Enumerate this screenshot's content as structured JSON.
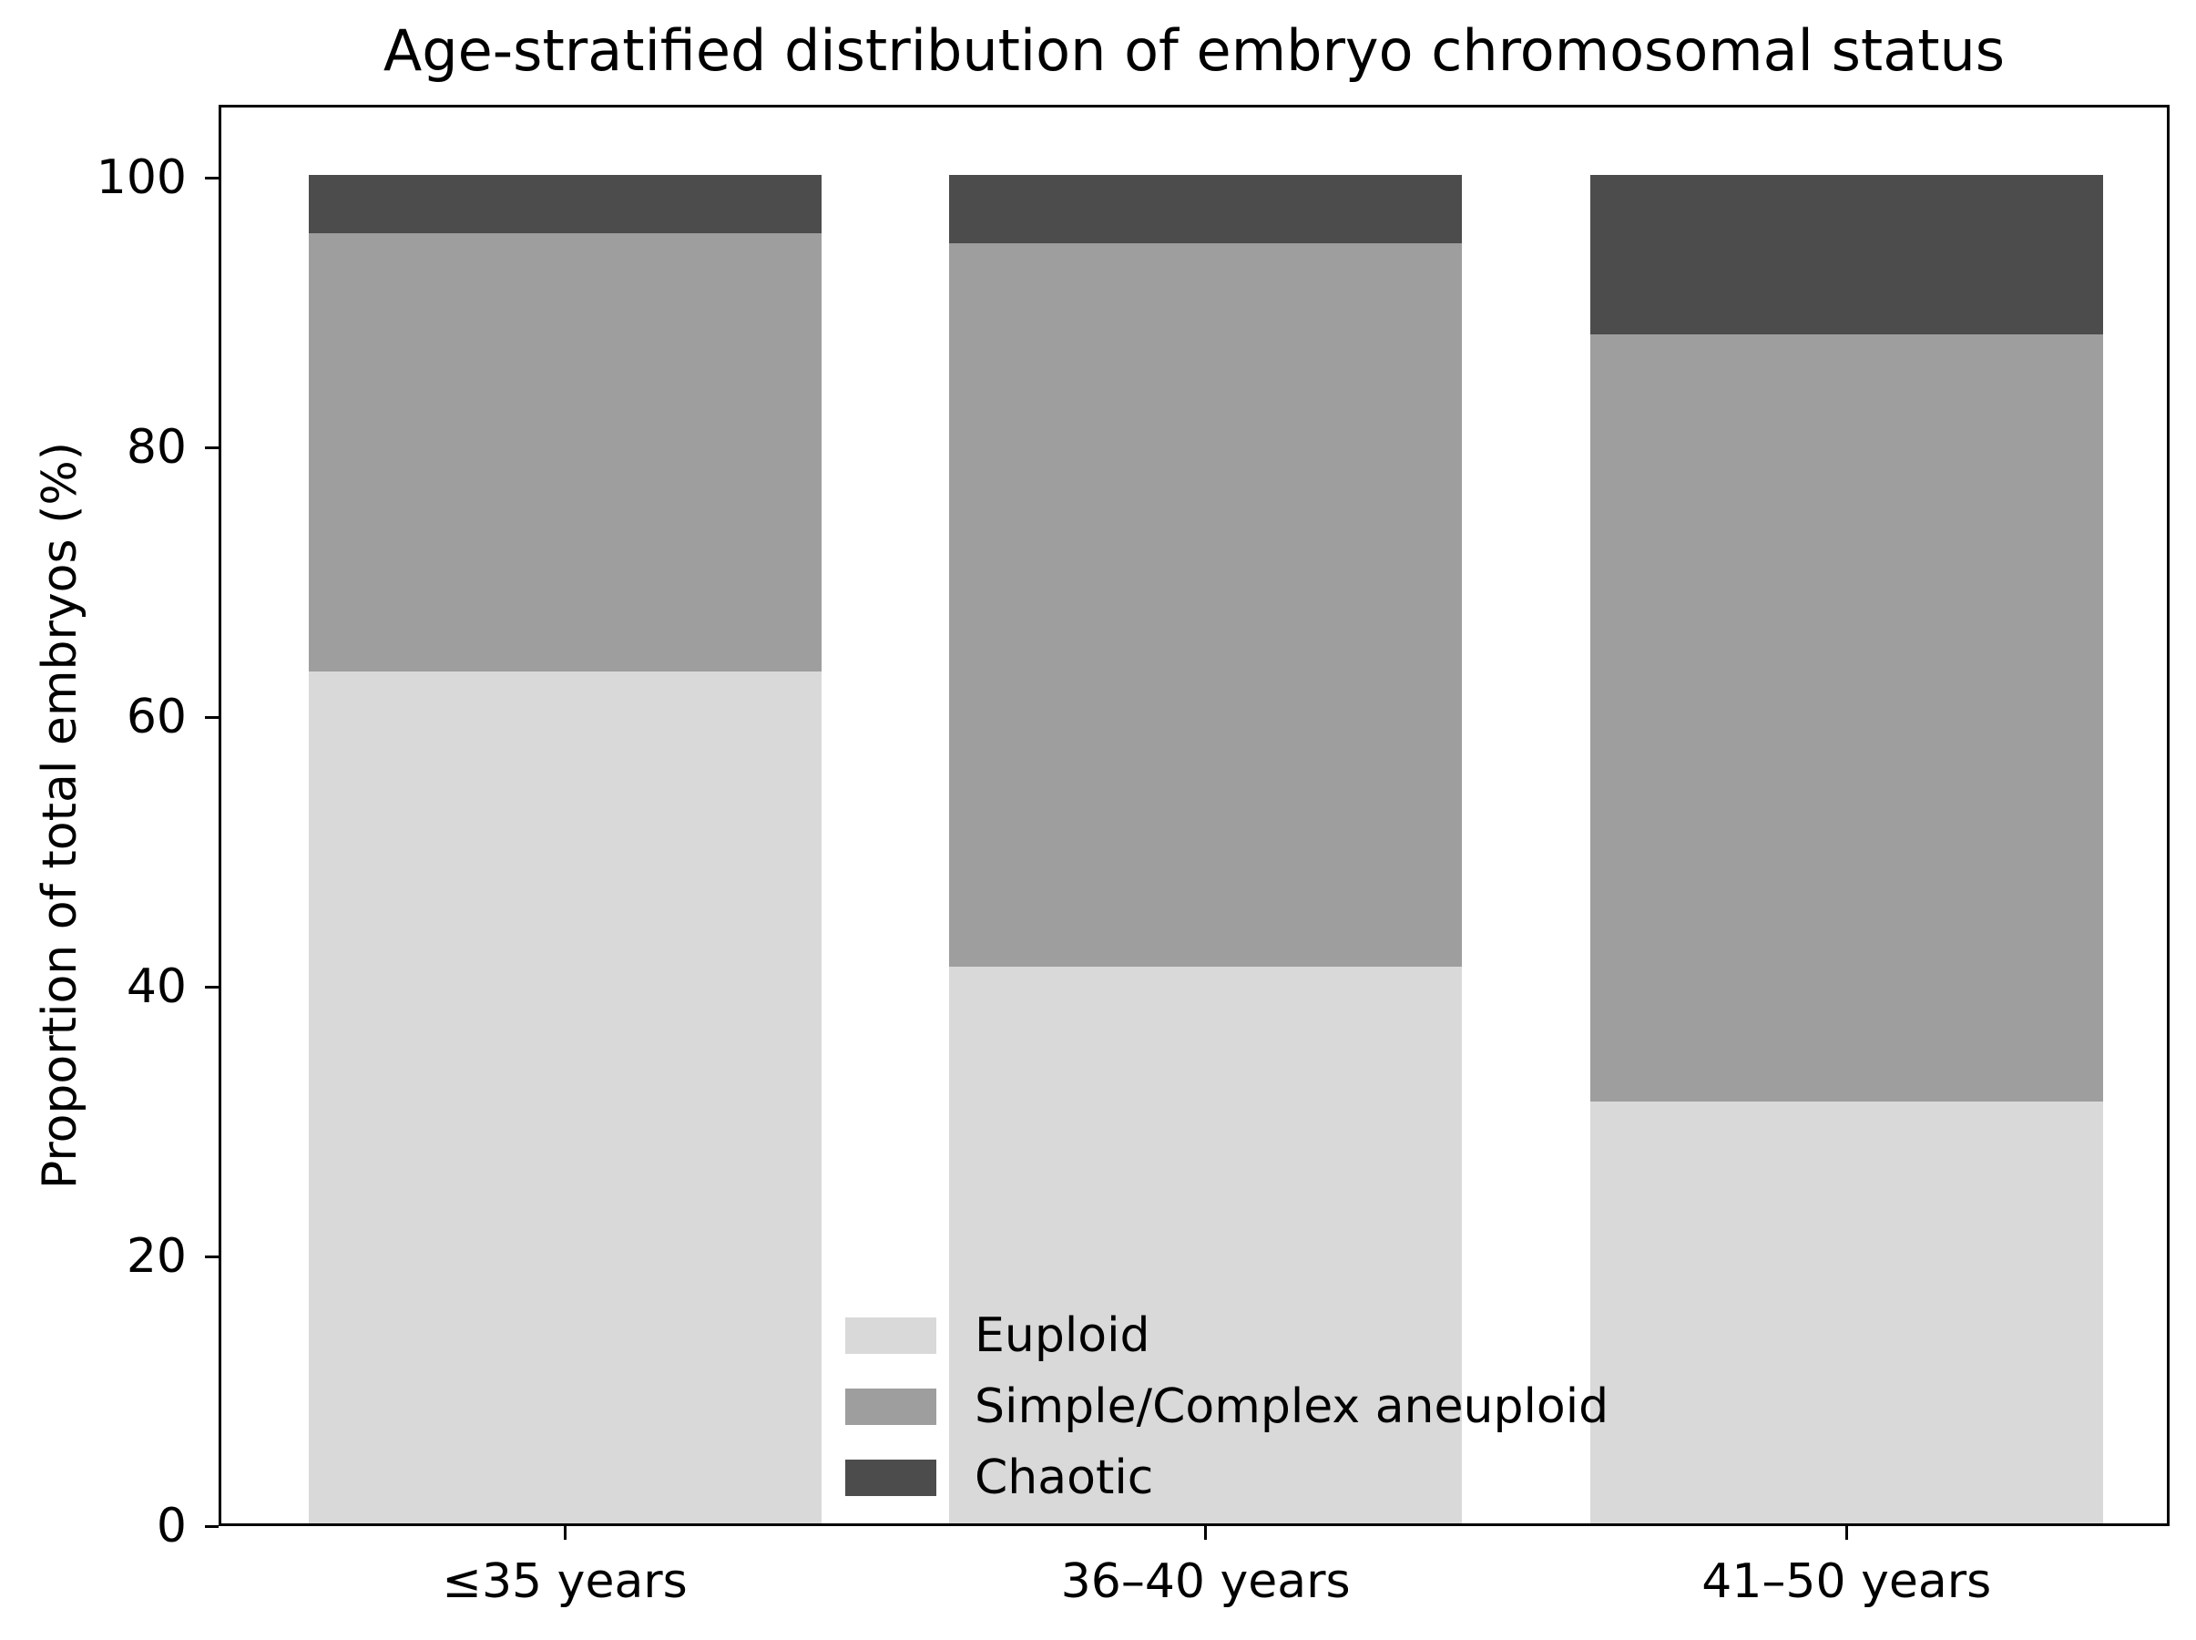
{
  "chart_data": {
    "type": "bar",
    "stacked": true,
    "orientation": "vertical",
    "title": "Age-stratified distribution of embryo chromosomal status",
    "xlabel": "",
    "ylabel": "Proportion of total embryos (%)",
    "categories": [
      "≤35 years",
      "36–40 years",
      "41–50 years"
    ],
    "series": [
      {
        "name": "Euploid",
        "color": "#d9d9d9",
        "values": [
          63.2,
          41.3,
          31.3
        ]
      },
      {
        "name": "Simple/Complex aneuploid",
        "color": "#9e9e9e",
        "values": [
          32.5,
          53.6,
          56.9
        ]
      },
      {
        "name": "Chaotic",
        "color": "#4c4c4c",
        "values": [
          4.3,
          5.1,
          11.8
        ]
      }
    ],
    "y_ticks": [
      0,
      20,
      40,
      60,
      80,
      100
    ],
    "ylim": [
      0,
      105
    ],
    "grid": false,
    "legend_position": "inside lower-center-left",
    "legend_frame": false,
    "frame_color": "#000000",
    "background_color": "#ffffff"
  }
}
